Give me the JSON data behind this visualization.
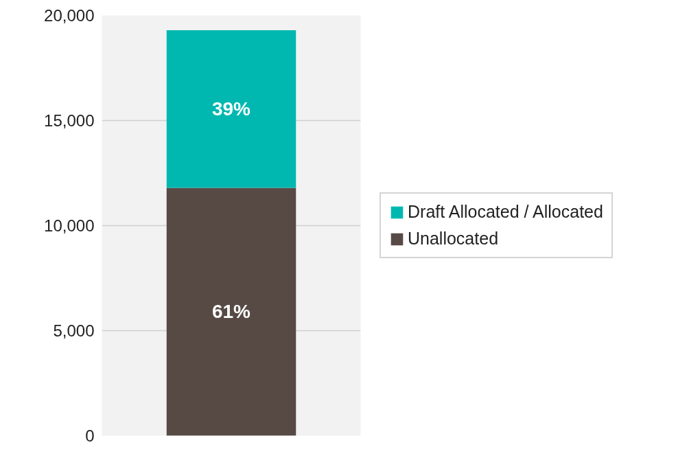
{
  "chart_data": {
    "type": "bar",
    "stacked": true,
    "categories": [
      null
    ],
    "series": [
      {
        "name": "Unallocated",
        "color": "#574a45",
        "values": [
          11800
        ]
      },
      {
        "name": "Draft Allocated / Allocated",
        "color": "#00b8b0",
        "values": [
          7500
        ]
      }
    ],
    "annotations": [
      "61%",
      "39%"
    ],
    "ylim": [
      0,
      20000
    ],
    "yticks": [
      {
        "value": 0,
        "label": "0"
      },
      {
        "value": 5000,
        "label": "5,000"
      },
      {
        "value": 10000,
        "label": "10,000"
      },
      {
        "value": 15000,
        "label": "15,000"
      },
      {
        "value": 20000,
        "label": "20,000"
      }
    ],
    "grid": "y",
    "legend": "right"
  }
}
